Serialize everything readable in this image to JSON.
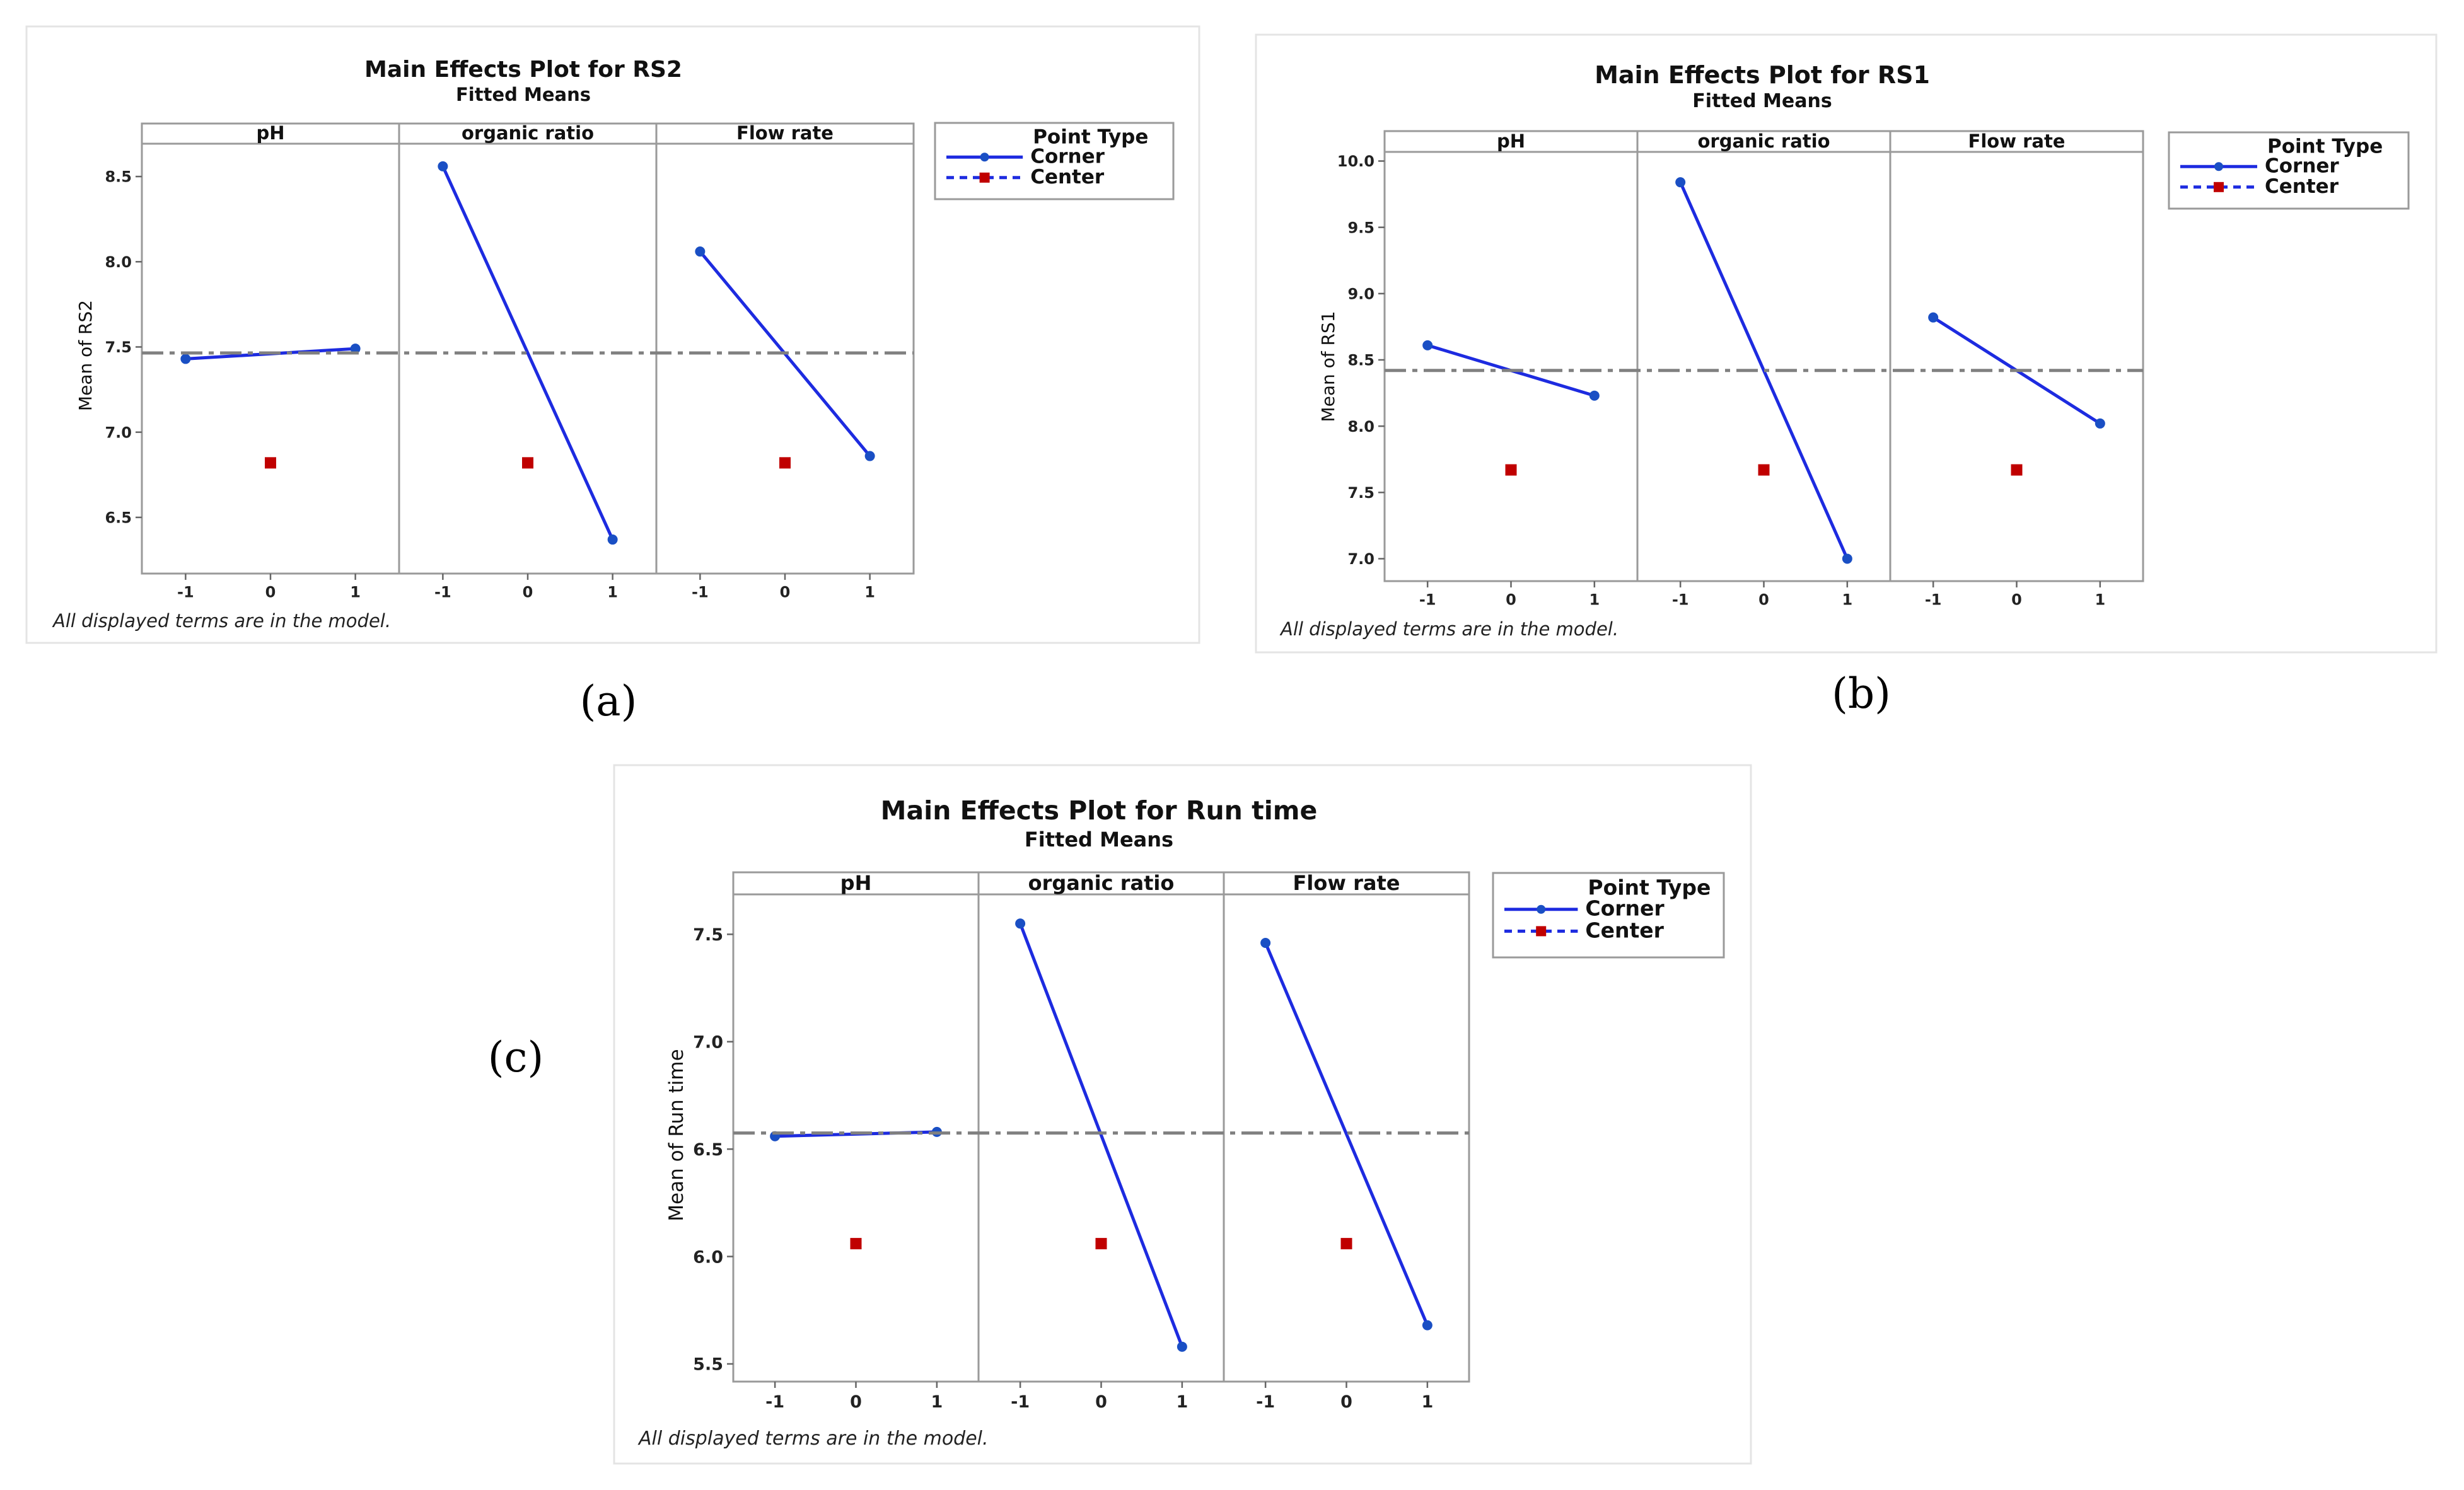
{
  "chart_data": [
    {
      "type": "line",
      "caption": "(a)",
      "title": "Main Effects Plot for RS2",
      "subtitle": "Fitted Means",
      "ylabel": "Mean of RS2",
      "ylim": [
        6.2,
        8.7
      ],
      "yticks": [
        "6.5",
        "7.0",
        "7.5",
        "8.0",
        "8.5"
      ],
      "x": [
        "-1",
        "0",
        "1"
      ],
      "overall_mean": 7.465,
      "center_value": 6.82,
      "factors": [
        {
          "name": "pH",
          "corner": [
            7.43,
            7.49
          ]
        },
        {
          "name": "organic ratio",
          "corner": [
            8.56,
            6.37
          ]
        },
        {
          "name": "Flow rate",
          "corner": [
            8.06,
            6.86
          ]
        }
      ],
      "legend": {
        "title": "Point Type",
        "corner": "Corner",
        "center": "Center"
      },
      "footnote": "All displayed terms are in the model."
    },
    {
      "type": "line",
      "caption": "(b)",
      "title": "Main Effects Plot for RS1",
      "subtitle": "Fitted Means",
      "ylabel": "Mean of RS1",
      "ylim": [
        6.85,
        10.05
      ],
      "yticks": [
        "7.0",
        "7.5",
        "8.0",
        "8.5",
        "9.0",
        "9.5",
        "10.0"
      ],
      "x": [
        "-1",
        "0",
        "1"
      ],
      "overall_mean": 8.42,
      "center_value": 7.67,
      "factors": [
        {
          "name": "pH",
          "corner": [
            8.61,
            8.23
          ]
        },
        {
          "name": "organic ratio",
          "corner": [
            9.84,
            7.0
          ]
        },
        {
          "name": "Flow rate",
          "corner": [
            8.82,
            8.02
          ]
        }
      ],
      "legend": {
        "title": "Point Type",
        "corner": "Corner",
        "center": "Center"
      },
      "footnote": "All displayed terms are in the model."
    },
    {
      "type": "line",
      "caption": "(c)",
      "title": "Main Effects Plot for Run time",
      "subtitle": "Fitted Means",
      "ylabel": "Mean of Run time",
      "ylim": [
        5.45,
        7.68
      ],
      "yticks": [
        "5.5",
        "6.0",
        "6.5",
        "7.0",
        "7.5"
      ],
      "x": [
        "-1",
        "0",
        "1"
      ],
      "overall_mean": 6.575,
      "center_value": 6.06,
      "factors": [
        {
          "name": "pH",
          "corner": [
            6.56,
            6.58
          ]
        },
        {
          "name": "organic ratio",
          "corner": [
            7.55,
            5.58
          ]
        },
        {
          "name": "Flow rate",
          "corner": [
            7.46,
            5.68
          ]
        }
      ],
      "legend": {
        "title": "Point Type",
        "corner": "Corner",
        "center": "Center"
      },
      "footnote": "All displayed terms are in the model."
    }
  ],
  "colors": {
    "corner_line": "#1d2be0",
    "corner_point": "#1a4fc4",
    "center_point": "#c00000",
    "mean_line": "#808080"
  }
}
